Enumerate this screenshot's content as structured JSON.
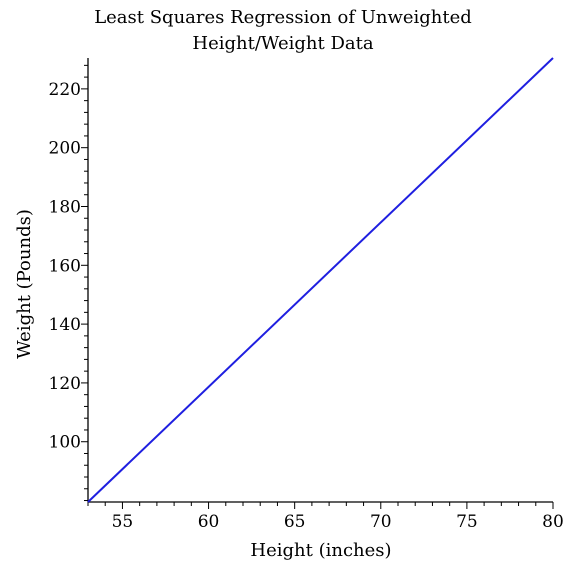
{
  "chart_data": {
    "type": "line",
    "title": [
      "Least Squares Regression of Unweighted",
      "Height/Weight Data"
    ],
    "xlabel": "Height (inches)",
    "ylabel": "Weight (Pounds)",
    "xlim": [
      53,
      80
    ],
    "ylim": [
      79.5,
      230.5
    ],
    "x_ticks": [
      55,
      60,
      65,
      70,
      75,
      80
    ],
    "y_ticks": [
      100,
      120,
      140,
      160,
      180,
      200,
      220
    ],
    "x_minor_step": 1,
    "y_minor_step": 4,
    "grid": false,
    "series": [
      {
        "x": [
          53,
          80
        ],
        "y": [
          79.5,
          230.5
        ],
        "color": "#1f1fe0"
      }
    ]
  }
}
